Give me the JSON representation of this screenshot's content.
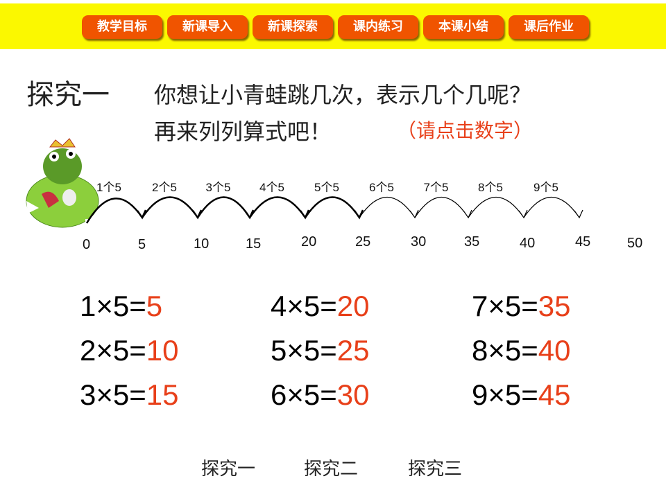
{
  "nav": [
    "教学目标",
    "新课导入",
    "新课探索",
    "课内练习",
    "本课小结",
    "课后作业"
  ],
  "title": "探究一",
  "question_line1": "你想让小青蛙跳几次，表示几个几呢？",
  "question_line2": "再来列列算式吧！",
  "hint": "（请点击数字）",
  "jump_labels": [
    "1个5",
    "2个5",
    "3个5",
    "4个5",
    "5个5",
    "6个5",
    "7个5",
    "8个5",
    "9个5"
  ],
  "numbers": [
    "0",
    "5",
    "10",
    "15",
    "20",
    "25",
    "30",
    "35",
    "40",
    "45",
    "50"
  ],
  "equations": [
    {
      "expr": "1×5=",
      "ans": "5"
    },
    {
      "expr": "2×5=",
      "ans": "10"
    },
    {
      "expr": "3×5=",
      "ans": "15"
    },
    {
      "expr": "4×5=",
      "ans": "20"
    },
    {
      "expr": "5×5=",
      "ans": "25"
    },
    {
      "expr": "6×5=",
      "ans": "30"
    },
    {
      "expr": "7×5=",
      "ans": "35"
    },
    {
      "expr": "8×5=",
      "ans": "40"
    },
    {
      "expr": "9×5=",
      "ans": "45"
    }
  ],
  "bottom_links": [
    "探究一",
    "探究二",
    "探究三"
  ],
  "colors": {
    "bar": "#fbf800",
    "button": "#f05400",
    "answer": "#e8401a"
  }
}
